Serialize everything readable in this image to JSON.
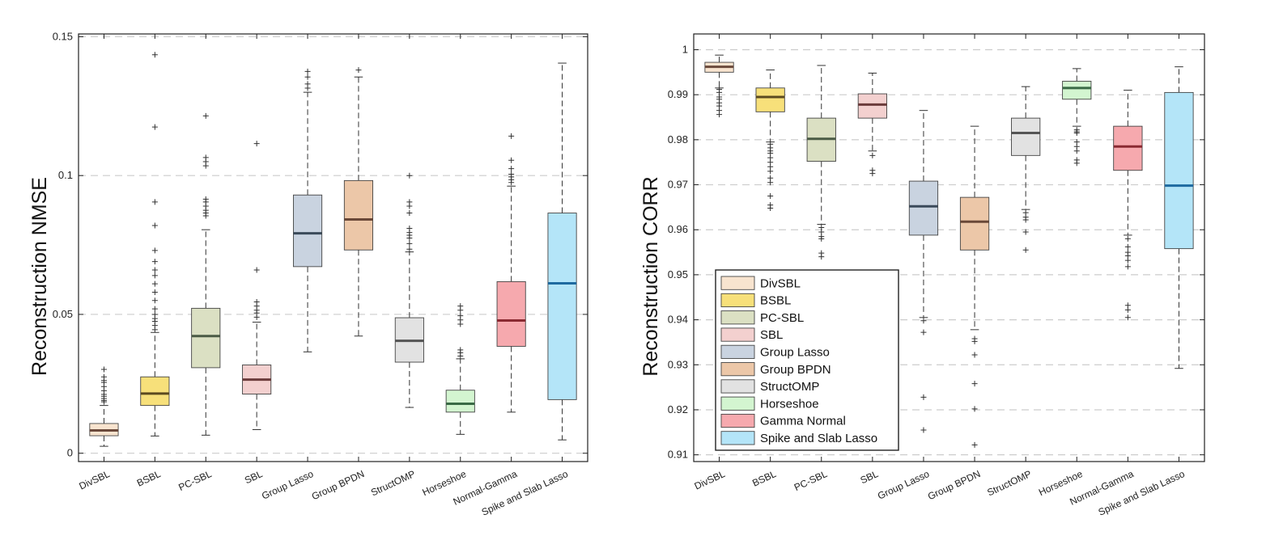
{
  "chart_data": [
    {
      "type": "boxplot",
      "ylabel": "Reconstruction NMSE",
      "ylim": [
        -0.003,
        0.151
      ],
      "yticks": [
        0,
        0.05,
        0.1,
        0.15
      ],
      "ytick_labels": [
        "0",
        "0.05",
        "0.1",
        "0.15"
      ],
      "grid": "horizontal-dashed",
      "categories": [
        "DivSBL",
        "BSBL",
        "PC-SBL",
        "SBL",
        "Group Lasso",
        "Group BPDN",
        "StructOMP",
        "Horseshoe",
        "Normal-Gamma",
        "Spike and Slab Lasso"
      ],
      "boxes": [
        {
          "q1": 0.0063,
          "median": 0.0082,
          "q3": 0.0107,
          "whislo": 0.0025,
          "whishi": 0.0172,
          "outliers": [
            0.0185,
            0.019,
            0.0197,
            0.0205,
            0.0212,
            0.0225,
            0.024,
            0.0255,
            0.0262,
            0.0275,
            0.0302
          ]
        },
        {
          "q1": 0.0172,
          "median": 0.0215,
          "q3": 0.0275,
          "whislo": 0.0062,
          "whishi": 0.0435,
          "outliers": [
            0.0445,
            0.046,
            0.0475,
            0.0485,
            0.05,
            0.052,
            0.055,
            0.058,
            0.061,
            0.064,
            0.066,
            0.069,
            0.073,
            0.082,
            0.0905,
            0.1175,
            0.1435
          ]
        },
        {
          "q1": 0.0308,
          "median": 0.0422,
          "q3": 0.0522,
          "whislo": 0.0065,
          "whishi": 0.0805,
          "outliers": [
            0.0855,
            0.0865,
            0.0875,
            0.089,
            0.0905,
            0.0915,
            0.1035,
            0.105,
            0.1065,
            0.1215
          ]
        },
        {
          "q1": 0.0213,
          "median": 0.0265,
          "q3": 0.0318,
          "whislo": 0.0085,
          "whishi": 0.0472,
          "outliers": [
            0.049,
            0.0505,
            0.0515,
            0.053,
            0.0545,
            0.066,
            0.1115
          ]
        },
        {
          "q1": 0.0672,
          "median": 0.0792,
          "q3": 0.093,
          "whislo": 0.0365,
          "whishi": 0.13,
          "outliers": [
            0.1315,
            0.133,
            0.1355,
            0.1375
          ]
        },
        {
          "q1": 0.0732,
          "median": 0.0842,
          "q3": 0.0982,
          "whislo": 0.0422,
          "whishi": 0.1355,
          "outliers": [
            0.138
          ]
        },
        {
          "q1": 0.0328,
          "median": 0.0405,
          "q3": 0.0488,
          "whislo": 0.0165,
          "whishi": 0.0725,
          "outliers": [
            0.0735,
            0.0755,
            0.0775,
            0.0785,
            0.0795,
            0.081,
            0.0865,
            0.089,
            0.0905,
            0.1
          ]
        },
        {
          "q1": 0.0148,
          "median": 0.0178,
          "q3": 0.0227,
          "whislo": 0.0068,
          "whishi": 0.034,
          "outliers": [
            0.035,
            0.0362,
            0.0372,
            0.0465,
            0.048,
            0.0495,
            0.0515,
            0.053
          ]
        },
        {
          "q1": 0.0385,
          "median": 0.0478,
          "q3": 0.0618,
          "whislo": 0.0148,
          "whishi": 0.0962,
          "outliers": [
            0.0975,
            0.0985,
            0.0995,
            0.1005,
            0.1025,
            0.1055,
            0.1142
          ]
        },
        {
          "q1": 0.0193,
          "median": 0.0612,
          "q3": 0.0865,
          "whislo": 0.0048,
          "whishi": 0.1405,
          "outliers": []
        }
      ]
    },
    {
      "type": "boxplot",
      "ylabel": "Reconstruction CORR",
      "ylim": [
        0.9085,
        1.0035
      ],
      "yticks": [
        0.91,
        0.92,
        0.93,
        0.94,
        0.95,
        0.96,
        0.97,
        0.98,
        0.99,
        1
      ],
      "ytick_labels": [
        "0.91",
        "0.92",
        "0.93",
        "0.94",
        "0.95",
        "0.96",
        "0.97",
        "0.98",
        "0.99",
        "1"
      ],
      "grid": "horizontal-dashed",
      "categories": [
        "DivSBL",
        "BSBL",
        "PC-SBL",
        "SBL",
        "Group Lasso",
        "Group BPDN",
        "StructOMP",
        "Horseshoe",
        "Normal-Gamma",
        "Spike and Slab Lasso"
      ],
      "boxes": [
        {
          "q1": 0.995,
          "median": 0.9962,
          "q3": 0.9972,
          "whislo": 0.9915,
          "whishi": 0.9988,
          "outliers": [
            0.9912,
            0.9905,
            0.9895,
            0.989,
            0.9882,
            0.9875,
            0.9865,
            0.9856
          ]
        },
        {
          "q1": 0.9862,
          "median": 0.9895,
          "q3": 0.9915,
          "whislo": 0.9795,
          "whishi": 0.9955,
          "outliers": [
            0.979,
            0.9782,
            0.9775,
            0.977,
            0.976,
            0.975,
            0.974,
            0.973,
            0.9715,
            0.9705,
            0.9675,
            0.9655,
            0.9648
          ]
        },
        {
          "q1": 0.9752,
          "median": 0.9802,
          "q3": 0.9848,
          "whislo": 0.9612,
          "whishi": 0.9965,
          "outliers": [
            0.9605,
            0.9595,
            0.9585,
            0.958,
            0.9548,
            0.954
          ]
        },
        {
          "q1": 0.9848,
          "median": 0.9878,
          "q3": 0.9902,
          "whislo": 0.9775,
          "whishi": 0.9948,
          "outliers": [
            0.9765,
            0.9732,
            0.9725
          ]
        },
        {
          "q1": 0.9588,
          "median": 0.9652,
          "q3": 0.9708,
          "whislo": 0.9405,
          "whishi": 0.9865,
          "outliers": [
            0.9398,
            0.9372,
            0.9228,
            0.9155
          ]
        },
        {
          "q1": 0.9555,
          "median": 0.9618,
          "q3": 0.9672,
          "whislo": 0.9378,
          "whishi": 0.983,
          "outliers": [
            0.9358,
            0.9352,
            0.9322,
            0.9258,
            0.9202,
            0.9122
          ]
        },
        {
          "q1": 0.9765,
          "median": 0.9815,
          "q3": 0.9848,
          "whislo": 0.9645,
          "whishi": 0.9918,
          "outliers": [
            0.9638,
            0.9628,
            0.9622,
            0.9595,
            0.9555
          ]
        },
        {
          "q1": 0.989,
          "median": 0.9915,
          "q3": 0.993,
          "whislo": 0.983,
          "whishi": 0.9958,
          "outliers": [
            0.9822,
            0.9818,
            0.9815,
            0.9795,
            0.9785,
            0.9775,
            0.9755,
            0.9748
          ]
        },
        {
          "q1": 0.9732,
          "median": 0.9785,
          "q3": 0.983,
          "whislo": 0.9588,
          "whishi": 0.991,
          "outliers": [
            0.958,
            0.9562,
            0.955,
            0.9542,
            0.9532,
            0.9518,
            0.9432,
            0.9422,
            0.9405
          ]
        },
        {
          "q1": 0.9558,
          "median": 0.9698,
          "q3": 0.9905,
          "whislo": 0.9292,
          "whishi": 0.9962,
          "outliers": []
        }
      ],
      "legend": {
        "placement": "lower-left",
        "entries": [
          "DivSBL",
          "BSBL",
          "PC-SBL",
          "SBL",
          "Group Lasso",
          "Group BPDN",
          "StructOMP",
          "Horseshoe",
          "Gamma Normal",
          "Spike and Slab Lasso"
        ]
      }
    }
  ],
  "style": {
    "box_colors": [
      "#f8e4cf",
      "#f7e07a",
      "#dbe0c3",
      "#f3d0cf",
      "#c9d3e0",
      "#ecc7a8",
      "#e2e2e2",
      "#d3f5d0",
      "#f6a9ae",
      "#b4e5f8"
    ],
    "median_colors": [
      "#6b4a3c",
      "#5b4a20",
      "#4a5a45",
      "#6b3b3b",
      "#3a4a5a",
      "#6a4838",
      "#555555",
      "#3a6a45",
      "#8a2a32",
      "#1e6aa0"
    ],
    "axis_color": "#222222",
    "grid_color": "#cccccc"
  }
}
